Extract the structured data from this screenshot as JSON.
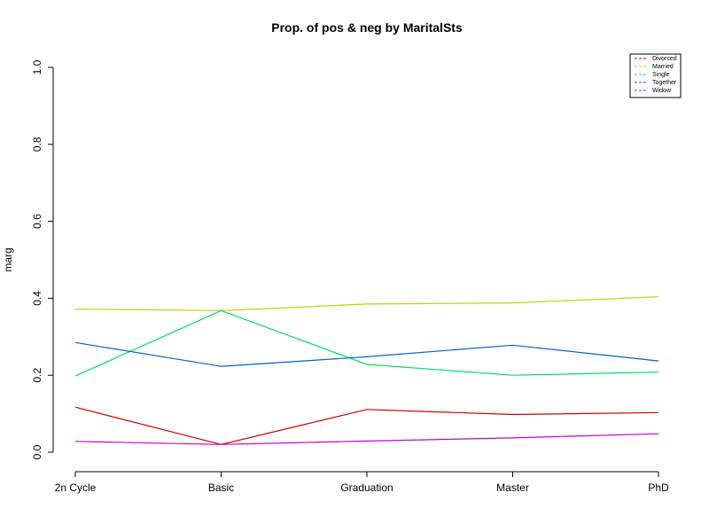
{
  "chart_data": {
    "type": "line",
    "title": "Prop. of pos & neg by MaritalSts",
    "xlabel": "",
    "ylabel": "marg",
    "categories": [
      "2n Cycle",
      "Basic",
      "Graduation",
      "Master",
      "PhD"
    ],
    "ylim": [
      0,
      1
    ],
    "yticks": [
      "0.0",
      "0.2",
      "0.4",
      "0.6",
      "0.8",
      "1.0"
    ],
    "grid": false,
    "legend_position": "top-right",
    "series": [
      {
        "name": "Divorced",
        "color": "#cc0000",
        "values": [
          0.117,
          0.02,
          0.111,
          0.098,
          0.103
        ]
      },
      {
        "name": "Married",
        "color": "#cccc00",
        "values": [
          0.372,
          0.368,
          0.385,
          0.388,
          0.404
        ]
      },
      {
        "name": "Single",
        "color": "#00e060",
        "values": [
          0.198,
          0.368,
          0.228,
          0.2,
          0.208
        ]
      },
      {
        "name": "Together",
        "color": "#0066cc",
        "values": [
          0.285,
          0.223,
          0.248,
          0.278,
          0.237
        ]
      },
      {
        "name": "Widow",
        "color": "#cc00cc",
        "values": [
          0.028,
          0.02,
          0.029,
          0.037,
          0.048
        ]
      }
    ]
  }
}
